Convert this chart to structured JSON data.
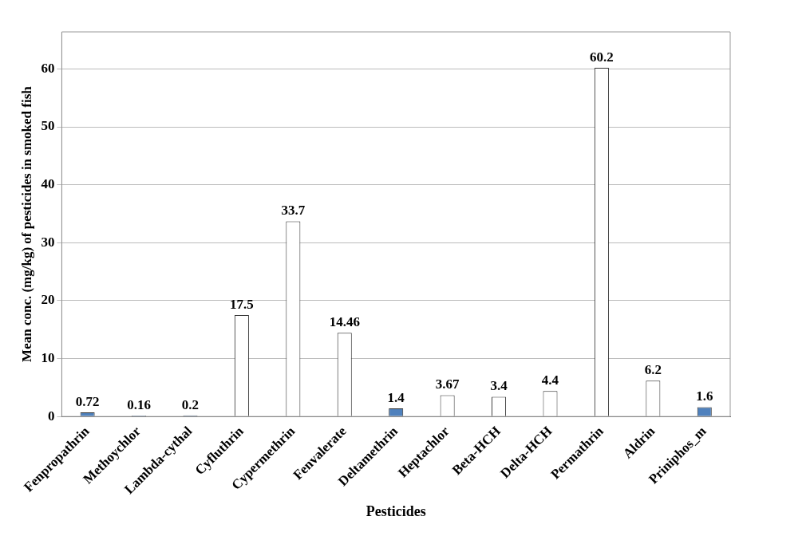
{
  "chart_data": {
    "type": "bar",
    "xlabel": "Pesticides",
    "ylabel": "Mean conc. (mg/kg) of pesticides in smoked fish",
    "categories": [
      "Fenpropathrin",
      "Methoychlor",
      "Lambda-cythal",
      "Cyfluthrin",
      "Cypermethrin",
      "Fenvalerate",
      "Deltamethrin",
      "Heptachlor",
      "Beta-HCH",
      "Delta-HCH",
      "Permathrin",
      "Aldrin",
      "Priniphos_m"
    ],
    "values": [
      0.72,
      0.16,
      0.2,
      17.5,
      33.7,
      14.46,
      1.4,
      3.67,
      3.4,
      4.4,
      60.2,
      6.2,
      1.6
    ],
    "colors": [
      "#4f81bd",
      "#4f81bd",
      "#4f81bd",
      "#ffffff",
      "#ffffff",
      "#ffffff",
      "#4f81bd",
      "#ffffff",
      "#ffffff",
      "#ffffff",
      "#ffffff",
      "#ffffff",
      "#4f81bd"
    ],
    "data_labels": true,
    "ylim": [
      0,
      66.4
    ],
    "yticks": [
      0,
      10,
      20,
      30,
      40,
      50,
      60
    ],
    "grid": "y",
    "legend": false
  }
}
